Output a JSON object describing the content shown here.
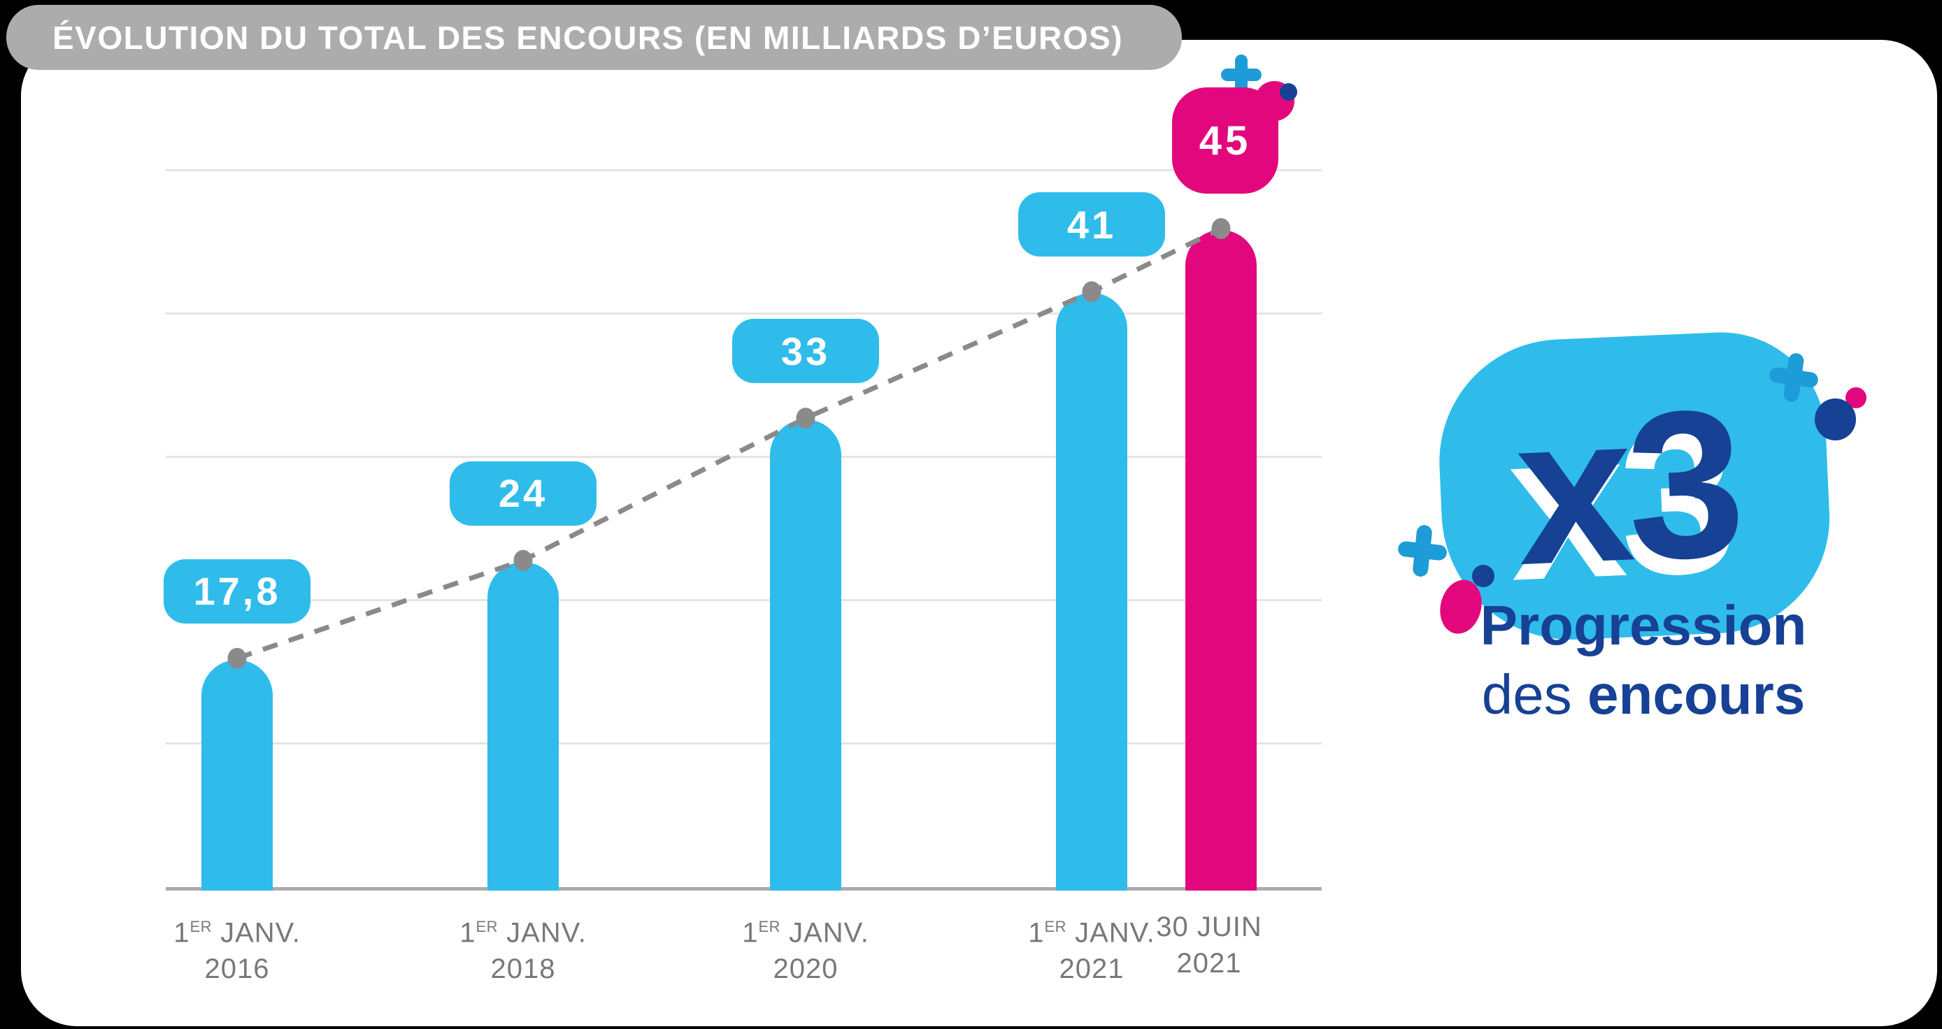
{
  "title": {
    "text": "ÉVOLUTION DU TOTAL DES ENCOURS (EN MILLIARDS D’EUROS)"
  },
  "colors": {
    "blue": "#2FBCEB",
    "pink": "#E2077C",
    "navy": "#164194",
    "plus_blue": "#1E9CD8",
    "badge_gray": "#ACACAC",
    "grid": "#E4E4E4",
    "axis": "#ABABAB",
    "trend": "#8A8A8A",
    "label": "#77787B"
  },
  "chart_data": {
    "type": "bar",
    "title": "Évolution du total des encours (en milliards d’euros)",
    "unit": "milliards d’euros",
    "ylim": [
      0,
      50
    ],
    "grid": true,
    "legend": "none",
    "trend_line": "dashed gray line with dots through bar tops",
    "categories": [
      "1er janv. 2016",
      "1er janv. 2018",
      "1er janv. 2020",
      "1er janv. 2021",
      "30 juin 2021"
    ],
    "values": [
      17.8,
      24,
      33,
      41,
      45
    ],
    "points": [
      {
        "label_pre": "1",
        "label_sup": "ER",
        "label_post": " JANV.",
        "label_year": "2016",
        "value": 17.8,
        "display": "17,8",
        "highlight": false
      },
      {
        "label_pre": "1",
        "label_sup": "ER",
        "label_post": " JANV.",
        "label_year": "2018",
        "value": 24,
        "display": "24",
        "highlight": false
      },
      {
        "label_pre": "1",
        "label_sup": "ER",
        "label_post": " JANV.",
        "label_year": "2020",
        "value": 33,
        "display": "33",
        "highlight": false
      },
      {
        "label_pre": "1",
        "label_sup": "ER",
        "label_post": " JANV.",
        "label_year": "2021",
        "value": 41,
        "display": "41",
        "highlight": false
      },
      {
        "label_pre": "30 JUIN",
        "label_sup": "",
        "label_post": "",
        "label_year": "2021",
        "value": 45,
        "display": "45",
        "highlight": true
      }
    ]
  },
  "right_panel": {
    "multiplier": "x3",
    "caption_bold_1": "Progression",
    "caption_light": "des",
    "caption_bold_2": "encours"
  }
}
